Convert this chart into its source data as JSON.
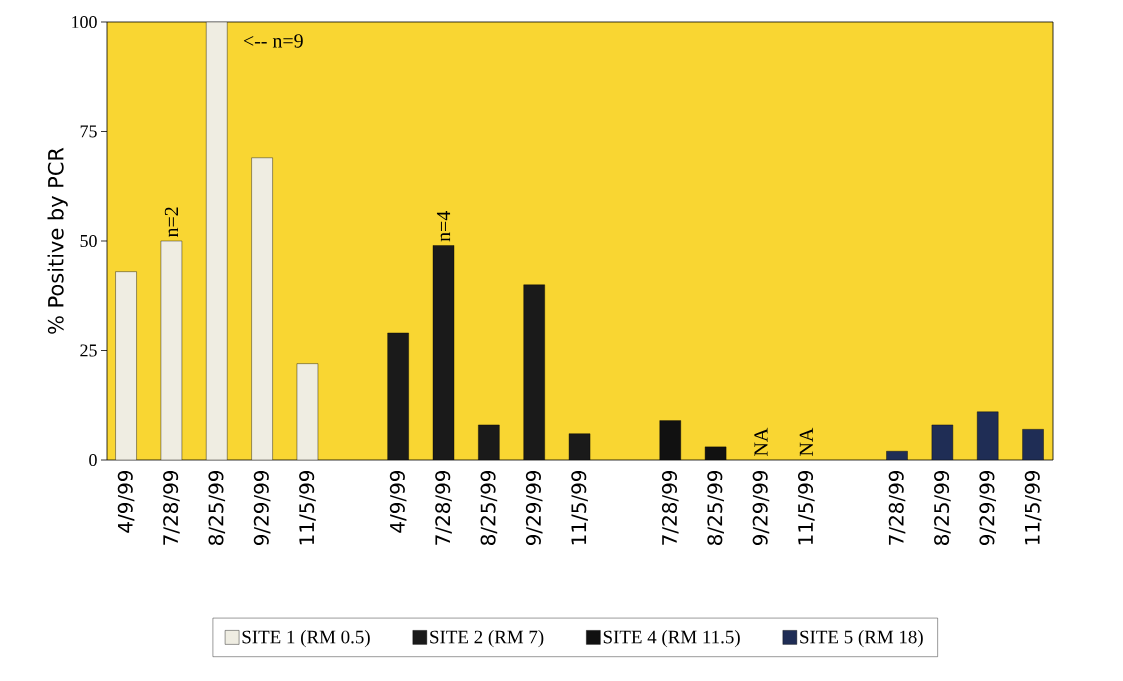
{
  "chart_data": {
    "type": "bar",
    "ylabel": "% Positive by PCR",
    "categories": [
      "4/9/99",
      "7/28/99",
      "8/25/99",
      "9/29/99",
      "11/5/99",
      null,
      "4/9/99",
      "7/28/99",
      "8/25/99",
      "9/29/99",
      "11/5/99",
      null,
      "7/28/99",
      "8/25/99",
      "9/29/99",
      "11/5/99",
      null,
      "7/28/99",
      "8/25/99",
      "9/29/99",
      "11/5/99"
    ],
    "series": [
      {
        "name": "SITE 1 (RM 0.5)",
        "color": "#efede2",
        "values": [
          43,
          50,
          100,
          69,
          22,
          null,
          null,
          null,
          null,
          null,
          null,
          null,
          null,
          null,
          null,
          null,
          null,
          null,
          null,
          null,
          null
        ]
      },
      {
        "name": "SITE 2 (RM 7)",
        "color": "#1a1a1a",
        "values": [
          null,
          null,
          null,
          null,
          null,
          null,
          29,
          49,
          8,
          40,
          6,
          null,
          null,
          null,
          null,
          null,
          null,
          null,
          null,
          null,
          null
        ]
      },
      {
        "name": "SITE 4 (RM 11.5)",
        "color": "#111111",
        "values": [
          null,
          null,
          null,
          null,
          null,
          null,
          null,
          null,
          null,
          null,
          null,
          null,
          9,
          3,
          null,
          null,
          null,
          null,
          null,
          null,
          null
        ]
      },
      {
        "name": "SITE 5 (RM 18)",
        "color": "#1f2d55",
        "values": [
          null,
          null,
          null,
          null,
          null,
          null,
          null,
          null,
          null,
          null,
          null,
          null,
          null,
          null,
          null,
          null,
          null,
          2,
          8,
          11,
          7
        ]
      }
    ],
    "ylim": [
      0,
      100
    ],
    "yticks": [
      0,
      25,
      50,
      75,
      100
    ],
    "grid": false,
    "legend": "bottom",
    "annotations": [
      {
        "text": "n=2",
        "x": "7/28/99",
        "y": 50
      },
      {
        "text": "<-- n=9",
        "x": "8/25/99",
        "y": 100
      },
      {
        "text": "n=4",
        "y": 49
      },
      "NA",
      "NA"
    ]
  }
}
